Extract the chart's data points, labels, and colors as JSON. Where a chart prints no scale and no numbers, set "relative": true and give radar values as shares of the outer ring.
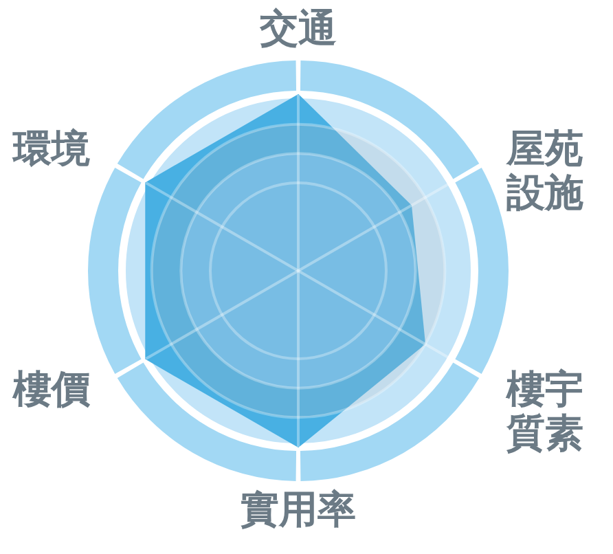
{
  "chart_data": {
    "type": "radar",
    "relative": true,
    "categories": [
      "交通",
      "屋苑設施",
      "樓宇質素",
      "實用率",
      "樓價",
      "環境"
    ],
    "series": [
      {
        "color": "#48b0e3",
        "values": [
          1,
          0.74,
          0.83,
          1,
          1,
          1
        ]
      }
    ],
    "grid": true
  }
}
